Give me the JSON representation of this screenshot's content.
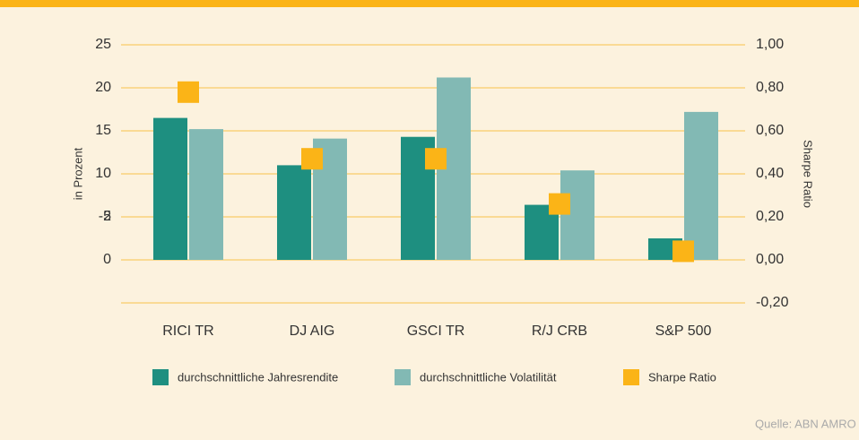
{
  "chart_data": {
    "type": "bar",
    "categories": [
      "RICI TR",
      "DJ AIG",
      "GSCI TR",
      "R/J CRB",
      "S&P 500"
    ],
    "series": [
      {
        "name": "durchschnittliche Jahresrendite",
        "color": "#1e8f80",
        "values": [
          16.5,
          11,
          14.3,
          6.4,
          2.5
        ]
      },
      {
        "name": "durchschnittliche Volatilität",
        "color": "#82b9b4",
        "values": [
          15.2,
          14.1,
          21.2,
          10.4,
          17.2
        ]
      },
      {
        "name": "Sharpe Ratio",
        "color": "#fbb417",
        "axis": "y2",
        "values": [
          0.78,
          0.47,
          0.47,
          0.26,
          0.04
        ]
      }
    ],
    "ylabel": "in Prozent",
    "y2label": "Sharpe Ratio",
    "ylim": [
      0,
      25
    ],
    "yticks": [
      -2,
      0,
      5,
      10,
      15,
      20,
      25
    ],
    "y2lim": [
      -0.2,
      1.0
    ],
    "y2ticks": [
      {
        "value": -0.2,
        "label": "-0,20"
      },
      {
        "value": 0,
        "label": "0,00"
      },
      {
        "value": 0.2,
        "label": "0,20"
      },
      {
        "value": 0.4,
        "label": "0,40"
      },
      {
        "value": 0.6,
        "label": "0,60"
      },
      {
        "value": 0.8,
        "label": "0,80"
      },
      {
        "value": 1.0,
        "label": "1,00"
      }
    ],
    "grid": true,
    "legend": "bottom",
    "source": "Quelle: ABN AMRO"
  }
}
